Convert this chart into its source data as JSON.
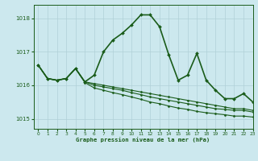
{
  "title": "Graphe pression niveau de la mer (hPa)",
  "background_color": "#cce8ee",
  "grid_color": "#b0d0d8",
  "line_color": "#1a5c1a",
  "xlim": [
    -0.5,
    23
  ],
  "ylim": [
    1014.7,
    1018.4
  ],
  "yticks": [
    1015,
    1016,
    1017,
    1018
  ],
  "xticks": [
    0,
    1,
    2,
    3,
    4,
    5,
    6,
    7,
    8,
    9,
    10,
    11,
    12,
    13,
    14,
    15,
    16,
    17,
    18,
    19,
    20,
    21,
    22,
    23
  ],
  "series": [
    {
      "x": [
        0,
        1,
        2,
        3,
        4,
        5,
        6,
        7,
        8,
        9,
        10,
        11,
        12,
        13,
        14,
        15,
        16,
        17,
        18,
        19,
        20,
        21,
        22,
        23
      ],
      "y": [
        1016.6,
        1016.2,
        1016.15,
        1016.2,
        1016.5,
        1016.1,
        1016.3,
        1017.0,
        1017.35,
        1017.55,
        1017.8,
        1018.1,
        1018.1,
        1017.75,
        1016.9,
        1016.15,
        1016.3,
        1016.95,
        1016.15,
        1015.85,
        1015.6,
        1015.6,
        1015.75,
        1015.5
      ],
      "linewidth": 1.2,
      "marker": "D",
      "markersize": 2.0
    },
    {
      "x": [
        0,
        1,
        2,
        3,
        4,
        5,
        6,
        7,
        8,
        9,
        10,
        11,
        12,
        13,
        14,
        15,
        16,
        17,
        18,
        19,
        20,
        21,
        22,
        23
      ],
      "y": [
        1016.6,
        1016.2,
        1016.15,
        1016.2,
        1016.5,
        1016.1,
        1016.05,
        1016.0,
        1015.95,
        1015.9,
        1015.85,
        1015.8,
        1015.75,
        1015.7,
        1015.65,
        1015.6,
        1015.55,
        1015.5,
        1015.45,
        1015.4,
        1015.35,
        1015.3,
        1015.3,
        1015.25
      ],
      "linewidth": 0.8,
      "marker": "D",
      "markersize": 1.5
    },
    {
      "x": [
        0,
        1,
        2,
        3,
        4,
        5,
        6,
        7,
        8,
        9,
        10,
        11,
        12,
        13,
        14,
        15,
        16,
        17,
        18,
        19,
        20,
        21,
        22,
        23
      ],
      "y": [
        1016.6,
        1016.2,
        1016.15,
        1016.2,
        1016.5,
        1016.1,
        1016.0,
        1015.95,
        1015.9,
        1015.85,
        1015.78,
        1015.72,
        1015.65,
        1015.6,
        1015.55,
        1015.5,
        1015.45,
        1015.4,
        1015.35,
        1015.3,
        1015.28,
        1015.25,
        1015.25,
        1015.2
      ],
      "linewidth": 0.8,
      "marker": "D",
      "markersize": 1.5
    },
    {
      "x": [
        0,
        1,
        2,
        3,
        4,
        5,
        6,
        7,
        8,
        9,
        10,
        11,
        12,
        13,
        14,
        15,
        16,
        17,
        18,
        19,
        20,
        21,
        22,
        23
      ],
      "y": [
        1016.6,
        1016.2,
        1016.15,
        1016.2,
        1016.5,
        1016.08,
        1015.92,
        1015.85,
        1015.78,
        1015.72,
        1015.65,
        1015.58,
        1015.5,
        1015.45,
        1015.38,
        1015.32,
        1015.28,
        1015.22,
        1015.18,
        1015.15,
        1015.12,
        1015.08,
        1015.08,
        1015.05
      ],
      "linewidth": 0.8,
      "marker": "D",
      "markersize": 1.5
    }
  ]
}
